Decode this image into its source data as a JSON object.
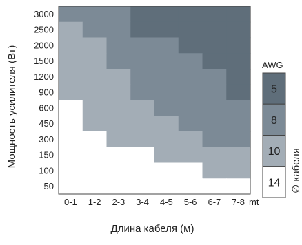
{
  "chart_data": {
    "type": "heatmap",
    "xlabel": "Длина кабеля (м)",
    "ylabel": "Мощность усилителя (Вт)",
    "x_unit": "mt",
    "x_categories": [
      "0-1",
      "1-2",
      "2-3",
      "3-4",
      "4-5",
      "5-6",
      "6-7",
      "7-8"
    ],
    "y_categories": [
      "3000",
      "2500",
      "2000",
      "1500",
      "1200",
      "900",
      "600",
      "450",
      "300",
      "150",
      "100",
      "50"
    ],
    "cells_awg": [
      [
        8,
        8,
        8,
        5,
        5,
        5,
        5,
        5
      ],
      [
        10,
        8,
        8,
        5,
        5,
        5,
        5,
        5
      ],
      [
        10,
        10,
        8,
        8,
        8,
        5,
        5,
        5
      ],
      [
        10,
        10,
        8,
        8,
        8,
        8,
        5,
        5
      ],
      [
        10,
        10,
        10,
        8,
        8,
        8,
        8,
        5
      ],
      [
        10,
        10,
        10,
        8,
        8,
        8,
        8,
        5
      ],
      [
        14,
        10,
        10,
        10,
        8,
        8,
        8,
        8
      ],
      [
        14,
        10,
        10,
        10,
        10,
        8,
        8,
        8
      ],
      [
        14,
        14,
        10,
        10,
        10,
        10,
        8,
        8
      ],
      [
        14,
        14,
        14,
        14,
        10,
        10,
        10,
        10
      ],
      [
        14,
        14,
        14,
        14,
        14,
        14,
        10,
        10
      ],
      [
        14,
        14,
        14,
        14,
        14,
        14,
        14,
        14
      ]
    ],
    "legend": {
      "title": "AWG",
      "items": [
        "5",
        "8",
        "10",
        "14"
      ],
      "side_label": "∅ кабеля"
    },
    "colors": {
      "5": "#5f6e7a",
      "8": "#7c8a96",
      "10": "#a3adb6",
      "14": "#ffffff"
    }
  }
}
